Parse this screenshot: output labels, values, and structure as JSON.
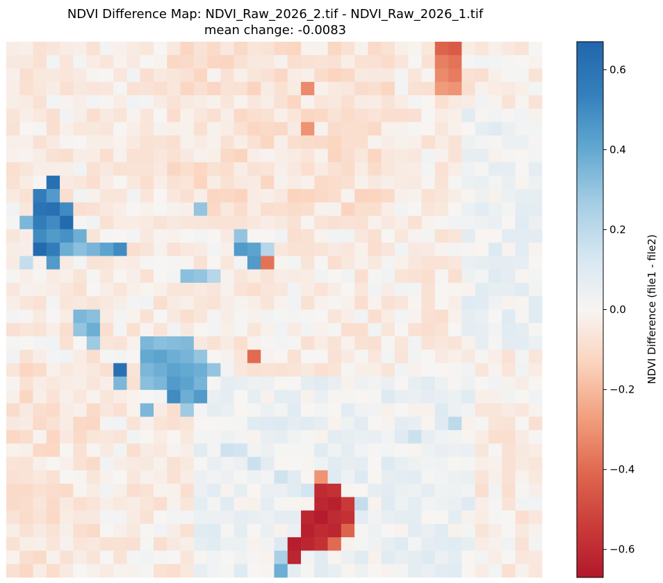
{
  "chart_data": {
    "type": "heatmap",
    "title_line1": "NDVI Difference Map: NDVI_Raw_2026_2.tif - NDVI_Raw_2026_1.tif",
    "title_line2": "mean change: -0.0083",
    "grid": {
      "rows": 40,
      "cols": 40
    },
    "value_range": [
      -0.67,
      0.67
    ],
    "colormap": "RdBu",
    "background_seed": 7,
    "regions": [
      {
        "name": "upper-left positive cluster",
        "value": 0.6,
        "cells": [
          [
            10,
            3
          ],
          [
            11,
            2
          ],
          [
            11,
            3
          ],
          [
            12,
            2
          ],
          [
            12,
            3
          ],
          [
            12,
            4
          ],
          [
            13,
            1
          ],
          [
            13,
            2
          ],
          [
            13,
            3
          ],
          [
            13,
            4
          ],
          [
            14,
            2
          ],
          [
            14,
            3
          ],
          [
            14,
            4
          ],
          [
            14,
            5
          ],
          [
            15,
            2
          ],
          [
            15,
            3
          ],
          [
            15,
            4
          ],
          [
            15,
            5
          ],
          [
            15,
            6
          ],
          [
            15,
            7
          ],
          [
            15,
            8
          ],
          [
            16,
            1
          ],
          [
            16,
            3
          ]
        ],
        "values": [
          0.62,
          0.55,
          0.45,
          0.6,
          0.62,
          0.5,
          0.35,
          0.55,
          0.5,
          0.65,
          0.5,
          0.45,
          0.48,
          0.38,
          0.65,
          0.55,
          0.38,
          0.32,
          0.36,
          0.42,
          0.5,
          0.18,
          0.45
        ]
      },
      {
        "name": "top-right negative patch",
        "value": -0.4,
        "cells": [
          [
            0,
            32
          ],
          [
            0,
            33
          ],
          [
            1,
            32
          ],
          [
            1,
            33
          ],
          [
            2,
            32
          ],
          [
            2,
            33
          ],
          [
            3,
            32
          ],
          [
            3,
            33
          ]
        ],
        "values": [
          -0.42,
          -0.45,
          -0.35,
          -0.38,
          -0.32,
          -0.36,
          -0.28,
          -0.3
        ]
      },
      {
        "name": "center positive cluster",
        "value": 0.42,
        "cells": [
          [
            20,
            5
          ],
          [
            20,
            6
          ],
          [
            21,
            5
          ],
          [
            21,
            6
          ],
          [
            22,
            6
          ],
          [
            22,
            10
          ],
          [
            22,
            11
          ],
          [
            22,
            12
          ],
          [
            22,
            13
          ],
          [
            23,
            10
          ],
          [
            23,
            11
          ],
          [
            23,
            12
          ],
          [
            23,
            13
          ],
          [
            23,
            14
          ],
          [
            24,
            8
          ],
          [
            24,
            10
          ],
          [
            24,
            11
          ],
          [
            24,
            12
          ],
          [
            24,
            13
          ],
          [
            24,
            14
          ],
          [
            24,
            15
          ],
          [
            25,
            8
          ],
          [
            25,
            10
          ],
          [
            25,
            11
          ],
          [
            25,
            12
          ],
          [
            25,
            13
          ],
          [
            25,
            14
          ],
          [
            26,
            12
          ],
          [
            26,
            13
          ],
          [
            26,
            14
          ],
          [
            27,
            10
          ],
          [
            27,
            13
          ]
        ],
        "values": [
          0.35,
          0.32,
          0.3,
          0.38,
          0.28,
          0.35,
          0.32,
          0.33,
          0.34,
          0.4,
          0.42,
          0.38,
          0.36,
          0.3,
          0.62,
          0.35,
          0.38,
          0.42,
          0.4,
          0.38,
          0.3,
          0.35,
          0.32,
          0.35,
          0.45,
          0.42,
          0.36,
          0.5,
          0.38,
          0.45,
          0.35,
          0.28
        ]
      },
      {
        "name": "mid positive dots",
        "value": 0.4,
        "cells": [
          [
            14,
            17
          ],
          [
            15,
            17
          ],
          [
            15,
            18
          ],
          [
            15,
            19
          ],
          [
            16,
            18
          ],
          [
            12,
            14
          ],
          [
            17,
            13
          ],
          [
            17,
            14
          ],
          [
            17,
            15
          ]
        ],
        "values": [
          0.3,
          0.45,
          0.42,
          0.22,
          0.45,
          0.3,
          0.32,
          0.3,
          0.22
        ]
      },
      {
        "name": "isolated negatives",
        "value": -0.4,
        "cells": [
          [
            16,
            19
          ],
          [
            23,
            18
          ],
          [
            6,
            22
          ],
          [
            3,
            22
          ]
        ],
        "values": [
          -0.38,
          -0.4,
          -0.3,
          -0.32
        ]
      },
      {
        "name": "bottom negative cluster",
        "value": -0.62,
        "cells": [
          [
            32,
            23
          ],
          [
            33,
            23
          ],
          [
            33,
            24
          ],
          [
            34,
            23
          ],
          [
            34,
            24
          ],
          [
            34,
            25
          ],
          [
            35,
            22
          ],
          [
            35,
            23
          ],
          [
            35,
            24
          ],
          [
            35,
            25
          ],
          [
            36,
            22
          ],
          [
            36,
            23
          ],
          [
            36,
            24
          ],
          [
            36,
            25
          ],
          [
            37,
            21
          ],
          [
            37,
            22
          ],
          [
            37,
            23
          ],
          [
            37,
            24
          ],
          [
            38,
            21
          ]
        ],
        "values": [
          -0.3,
          -0.6,
          -0.58,
          -0.62,
          -0.64,
          -0.55,
          -0.62,
          -0.66,
          -0.6,
          -0.58,
          -0.64,
          -0.6,
          -0.62,
          -0.42,
          -0.65,
          -0.62,
          -0.58,
          -0.4,
          -0.62
        ]
      },
      {
        "name": "bottom-center positive patch",
        "value": 0.15,
        "cells": [
          [
            39,
            20
          ],
          [
            38,
            20
          ],
          [
            30,
            16
          ],
          [
            30,
            17
          ],
          [
            31,
            18
          ],
          [
            32,
            20
          ],
          [
            33,
            22
          ],
          [
            34,
            26
          ],
          [
            29,
            30
          ],
          [
            28,
            33
          ]
        ],
        "values": [
          0.38,
          0.25,
          0.15,
          0.14,
          0.16,
          0.15,
          0.14,
          0.18,
          0.16,
          0.2
        ]
      }
    ],
    "colorbar": {
      "label": "NDVI Difference (file1 - file2)",
      "ticks": [
        0.6,
        0.4,
        0.2,
        0.0,
        -0.2,
        -0.4,
        -0.6
      ],
      "tick_labels": [
        "0.6",
        "0.4",
        "0.2",
        "0.0",
        "−0.2",
        "−0.4",
        "−0.6"
      ]
    }
  }
}
